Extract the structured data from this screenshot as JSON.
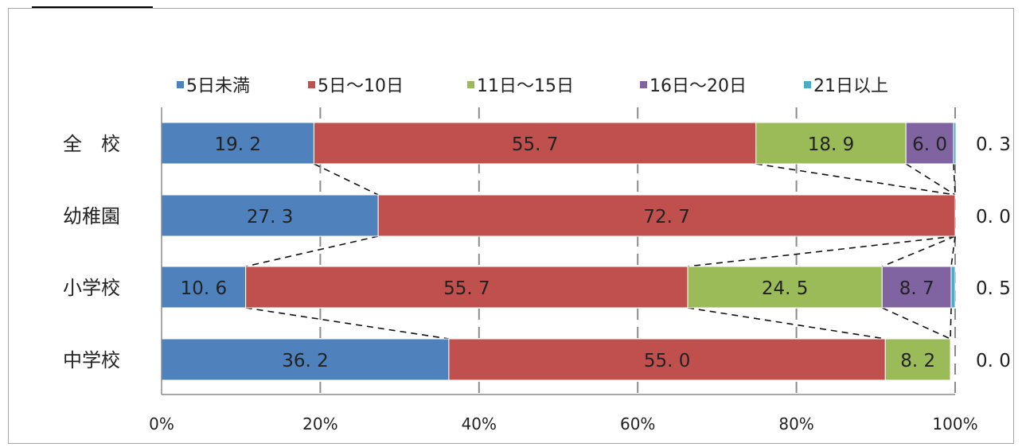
{
  "chart_data": {
    "type": "bar",
    "orientation": "horizontal",
    "stacked": "percent",
    "categories": [
      "全　校",
      "幼稚園",
      "小学校",
      "中学校"
    ],
    "series": [
      {
        "name": "5日未満",
        "color": "#4f81bd",
        "values": [
          19.2,
          27.3,
          10.6,
          36.2
        ],
        "labels": [
          "19. 2",
          "27. 3",
          "10. 6",
          "36. 2"
        ]
      },
      {
        "name": "5日～10日",
        "color": "#c0504d",
        "values": [
          55.7,
          72.7,
          55.7,
          55.0
        ],
        "labels": [
          "55. 7",
          "72. 7",
          "55. 7",
          "55. 0"
        ]
      },
      {
        "name": "11日～15日",
        "color": "#9bbb59",
        "values": [
          18.9,
          0.0,
          24.5,
          8.2
        ],
        "labels": [
          "18. 9",
          "",
          "24. 5",
          "8. 2"
        ]
      },
      {
        "name": "16日～20日",
        "color": "#8064a2",
        "values": [
          6.0,
          0.0,
          8.7,
          0.0
        ],
        "labels": [
          "6. 0",
          "",
          "8. 7",
          ""
        ]
      },
      {
        "name": "21日以上",
        "color": "#4bacc6",
        "values": [
          0.3,
          0.0,
          0.5,
          0.0
        ],
        "labels": [
          "0. 3",
          "0. 0",
          "0. 5",
          "0. 0"
        ],
        "label_position": "outside"
      }
    ],
    "x_ticks": [
      "0%",
      "20%",
      "40%",
      "60%",
      "80%",
      "100%"
    ],
    "xlim": [
      0,
      100
    ],
    "legend_position": "top",
    "grid": "vertical-dashed",
    "series_lines": true
  }
}
